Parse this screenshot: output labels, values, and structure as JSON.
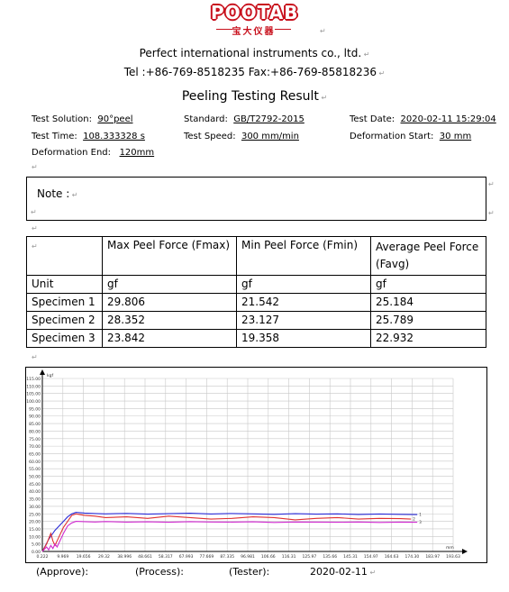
{
  "logo": {
    "brand": "POOTAB",
    "subtitle": "宝大仪器"
  },
  "header": {
    "company": "Perfect international instruments co., ltd.",
    "contact": "Tel :+86-769-8518235 Fax:+86-769-85818236"
  },
  "title": "Peeling Testing Result",
  "info": {
    "test_solution_label": "Test Solution:",
    "test_solution_value": "90°peel",
    "standard_label": "Standard:",
    "standard_value": "GB/T2792-2015",
    "test_date_label": "Test Date:",
    "test_date_value": "2020-02-11 15:29:04",
    "test_time_label": "Test Time:",
    "test_time_value": "108.333328 s",
    "test_speed_label": "Test Speed:",
    "test_speed_value": "300 mm/min",
    "deformation_start_label": "Deformation Start:",
    "deformation_start_value": "30 mm",
    "deformation_end_label": "Deformation End:",
    "deformation_end_value": "120mm"
  },
  "note": {
    "label": "Note :"
  },
  "table": {
    "headers": [
      "",
      "Max Peel Force (Fmax)",
      "Min Peel Force (Fmin)",
      "Average Peel Force (Favg)"
    ],
    "rows": [
      [
        "Unit",
        "gf",
        "gf",
        "gf"
      ],
      [
        "Specimen 1",
        "29.806",
        "21.542",
        "25.184"
      ],
      [
        "Specimen 2",
        "28.352",
        "23.127",
        "25.789"
      ],
      [
        "Specimen 3",
        "23.842",
        "19.358",
        "22.932"
      ]
    ]
  },
  "chart_data": {
    "type": "line",
    "title": "",
    "ylabel": "",
    "xlabel": "",
    "y_axis_unit": "kgf",
    "x_axis_unit": "mm",
    "ylim": [
      0,
      115
    ],
    "xlim": [
      0,
      195
    ],
    "grid": true,
    "y_ticks": [
      "115.00",
      "110.00",
      "105.00",
      "100.00",
      "95.00",
      "90.00",
      "85.00",
      "80.00",
      "75.00",
      "70.00",
      "65.00",
      "60.00",
      "55.00",
      "50.00",
      "45.00",
      "40.00",
      "35.00",
      "30.00",
      "25.00",
      "20.00",
      "15.00",
      "10.00",
      "5.00",
      "0.00"
    ],
    "x_ticks": [
      "0.222",
      "9.969",
      "19.656",
      "29.32",
      "38.996",
      "48.661",
      "58.317",
      "67.993",
      "77.669",
      "87.335",
      "96.981",
      "106.66",
      "116.31",
      "125.97",
      "135.66",
      "145.31",
      "154.97",
      "164.63",
      "174.30",
      "183.97",
      "193.63"
    ],
    "series": [
      {
        "color": "#2b2bd6",
        "x": [
          0,
          3,
          6,
          8,
          10,
          12,
          14,
          16,
          20,
          25,
          30,
          40,
          50,
          60,
          70,
          80,
          90,
          100,
          110,
          120,
          130,
          140,
          150,
          160,
          170,
          178
        ],
        "y": [
          0,
          8,
          14,
          17,
          20,
          23,
          25,
          26,
          25.5,
          25.2,
          25,
          25.3,
          24.8,
          25.1,
          25.4,
          24.9,
          25.2,
          25,
          24.7,
          25.1,
          24.8,
          25,
          24.6,
          24.9,
          24.7,
          24.5
        ]
      },
      {
        "color": "#e03030",
        "x": [
          0,
          2,
          4,
          5,
          6,
          8,
          10,
          12,
          14,
          16,
          20,
          25,
          30,
          40,
          50,
          60,
          70,
          80,
          90,
          100,
          110,
          120,
          130,
          140,
          150,
          160,
          170,
          175
        ],
        "y": [
          0,
          5,
          12,
          7,
          4,
          10,
          16,
          20,
          24,
          25,
          24,
          23.5,
          22.5,
          23,
          22,
          23.5,
          22.5,
          21.5,
          22,
          23,
          22.5,
          21,
          22,
          22.5,
          21.5,
          22,
          21.8,
          21.5
        ]
      },
      {
        "color": "#d02ad0",
        "x": [
          0,
          2,
          3,
          4,
          5,
          6,
          7,
          8,
          10,
          12,
          14,
          16,
          20,
          25,
          30,
          40,
          50,
          60,
          70,
          80,
          90,
          100,
          110,
          120,
          130,
          140,
          150,
          160,
          170,
          178
        ],
        "y": [
          0,
          3,
          1,
          4,
          2,
          5,
          3,
          6,
          12,
          17,
          19,
          20,
          19.8,
          19.6,
          19.9,
          19.5,
          19.7,
          19.4,
          19.8,
          19.6,
          19.5,
          19.7,
          19.3,
          19.6,
          19.5,
          19.4,
          19.6,
          19.3,
          19.5,
          19.4
        ]
      }
    ]
  },
  "signature": {
    "approve": "(Approve):",
    "process": "(Process):",
    "tester": "(Tester):",
    "date": "2020-02-11"
  }
}
